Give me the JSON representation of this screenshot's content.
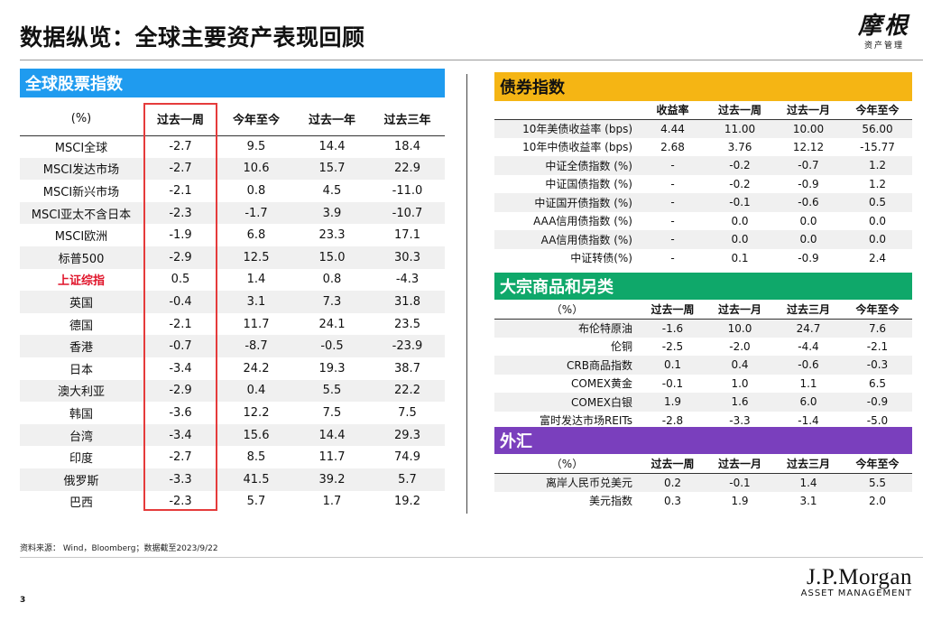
{
  "header": {
    "title": "数据纵览：全球主要资产表现回顾",
    "brand_cn": "摩根",
    "brand_cn_sub": "资产管理"
  },
  "equity": {
    "title": "全球股票指数",
    "columns": [
      "(%)",
      "过去一周",
      "今年至今",
      "过去一年",
      "过去三年"
    ],
    "rows": [
      [
        "MSCI全球",
        "-2.7",
        "9.5",
        "14.4",
        "18.4"
      ],
      [
        "MSCI发达市场",
        "-2.7",
        "10.6",
        "15.7",
        "22.9"
      ],
      [
        "MSCI新兴市场",
        "-2.1",
        "0.8",
        "4.5",
        "-11.0"
      ],
      [
        "MSCI亚太不含日本",
        "-2.3",
        "-1.7",
        "3.9",
        "-10.7"
      ],
      [
        "MSCI欧洲",
        "-1.9",
        "6.8",
        "23.3",
        "17.1"
      ],
      [
        "标普500",
        "-2.9",
        "12.5",
        "15.0",
        "30.3"
      ],
      [
        "上证综指",
        "0.5",
        "1.4",
        "0.8",
        "-4.3"
      ],
      [
        "英国",
        "-0.4",
        "3.1",
        "7.3",
        "31.8"
      ],
      [
        "德国",
        "-2.1",
        "11.7",
        "24.1",
        "23.5"
      ],
      [
        "香港",
        "-0.7",
        "-8.7",
        "-0.5",
        "-23.9"
      ],
      [
        "日本",
        "-3.4",
        "24.2",
        "19.3",
        "38.7"
      ],
      [
        "澳大利亚",
        "-2.9",
        "0.4",
        "5.5",
        "22.2"
      ],
      [
        "韩国",
        "-3.6",
        "12.2",
        "7.5",
        "7.5"
      ],
      [
        "台湾",
        "-3.4",
        "15.6",
        "14.4",
        "29.3"
      ],
      [
        "印度",
        "-2.7",
        "8.5",
        "11.7",
        "74.9"
      ],
      [
        "俄罗斯",
        "-3.3",
        "41.5",
        "39.2",
        "5.7"
      ],
      [
        "巴西",
        "-2.3",
        "5.7",
        "1.7",
        "19.2"
      ]
    ]
  },
  "bonds": {
    "title": "债券指数",
    "columns": [
      "",
      "收益率",
      "过去一周",
      "过去一月",
      "今年至今"
    ],
    "rows": [
      [
        "10年美债收益率 (bps)",
        "4.44",
        "11.00",
        "10.00",
        "56.00"
      ],
      [
        "10年中债收益率 (bps)",
        "2.68",
        "3.76",
        "12.12",
        "-15.77"
      ],
      [
        "中证全债指数 (%)",
        "-",
        "-0.2",
        "-0.7",
        "1.2"
      ],
      [
        "中证国债指数 (%)",
        "-",
        "-0.2",
        "-0.9",
        "1.2"
      ],
      [
        "中证国开债指数 (%)",
        "-",
        "-0.1",
        "-0.6",
        "0.5"
      ],
      [
        "AAA信用债指数 (%)",
        "-",
        "0.0",
        "0.0",
        "0.0"
      ],
      [
        "AA信用债指数 (%)",
        "-",
        "0.0",
        "0.0",
        "0.0"
      ],
      [
        "中证转债(%)",
        "-",
        "0.1",
        "-0.9",
        "2.4"
      ]
    ]
  },
  "commodities": {
    "title": "大宗商品和另类",
    "columns": [
      "（%）",
      "过去一周",
      "过去一月",
      "过去三月",
      "今年至今"
    ],
    "rows": [
      [
        "布伦特原油",
        "-1.6",
        "10.0",
        "24.7",
        "7.6"
      ],
      [
        "伦铜",
        "-2.5",
        "-2.0",
        "-4.4",
        "-2.1"
      ],
      [
        "CRB商品指数",
        "0.1",
        "0.4",
        "-0.6",
        "-0.3"
      ],
      [
        "COMEX黄金",
        "-0.1",
        "1.0",
        "1.1",
        "6.5"
      ],
      [
        "COMEX白银",
        "1.9",
        "1.6",
        "6.0",
        "-0.9"
      ],
      [
        "富时发达市场REITs",
        "-2.8",
        "-3.3",
        "-1.4",
        "-5.0"
      ]
    ]
  },
  "fx": {
    "title": "外汇",
    "columns": [
      "（%）",
      "过去一周",
      "过去一月",
      "过去三月",
      "今年至今"
    ],
    "rows": [
      [
        "离岸人民币兑美元",
        "0.2",
        "-0.1",
        "1.4",
        "5.5"
      ],
      [
        "美元指数",
        "0.3",
        "1.9",
        "3.1",
        "2.0"
      ]
    ]
  },
  "footer": {
    "source": "资料来源： Wind，Bloomberg；数据截至2023/9/22",
    "page_number": "3",
    "brand": "J.P.Morgan",
    "brand_sub": "ASSET MANAGEMENT"
  },
  "colors": {
    "equity_header": "#1f9bef",
    "bonds_header": "#f5b514",
    "commodities_header": "#0fa86a",
    "fx_header": "#7a3fbd",
    "highlight": "#e53b3b"
  }
}
